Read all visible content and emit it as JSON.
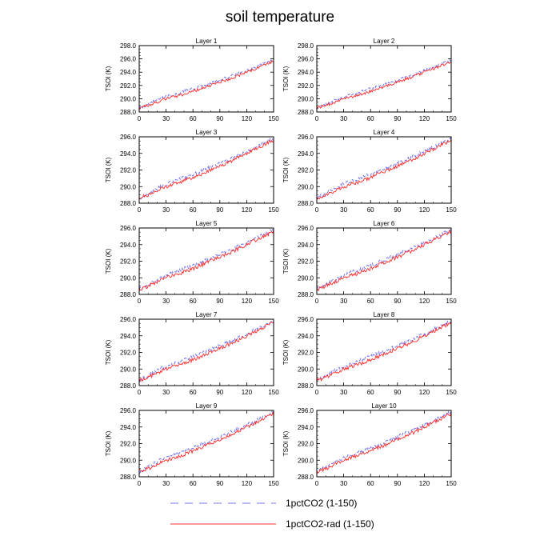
{
  "figure": {
    "title": "soil temperature"
  },
  "chart_data": {
    "type": "line",
    "x": {
      "ticks": [
        0,
        30,
        60,
        90,
        120,
        150
      ],
      "range": [
        0,
        150
      ]
    },
    "ylabel": "TSOI  (K)",
    "ylim": [
      288.0,
      296.0
    ],
    "yticks_first_panel": [
      "288.0",
      "290.0",
      "292.0",
      "294.0",
      "296.0",
      "298.0"
    ],
    "yticks": [
      "288.0",
      "290.0",
      "292.0",
      "294.0",
      "296.0"
    ],
    "ylim_first_panel": [
      288.0,
      298.0
    ],
    "legend": {
      "placement": "bottom-center",
      "entries": [
        {
          "label": "1pctCO2 (1-150)",
          "color": "#7777ee",
          "style": "dashed"
        },
        {
          "label": "1pctCO2-rad (1-150)",
          "color": "#ff3333",
          "style": "solid"
        }
      ]
    },
    "panels": [
      {
        "title": "Layer 1",
        "ylim": [
          288.0,
          298.0
        ],
        "series": [
          {
            "name": "1pctCO2 (1-150)",
            "x": [
              0,
              10,
              20,
              30,
              45,
              60,
              75,
              90,
              105,
              120,
              135,
              150
            ],
            "y": [
              288.6,
              289.2,
              289.8,
              290.3,
              290.9,
              291.5,
              292.1,
              292.8,
              293.5,
              294.2,
              295.0,
              295.8
            ]
          },
          {
            "name": "1pctCO2-rad (1-150)",
            "x": [
              0,
              10,
              20,
              30,
              45,
              60,
              75,
              90,
              105,
              120,
              135,
              150
            ],
            "y": [
              288.6,
              289.0,
              289.5,
              290.0,
              290.5,
              291.1,
              291.8,
              292.5,
              293.2,
              294.0,
              294.8,
              295.6
            ]
          }
        ]
      },
      {
        "title": "Layer 2",
        "ylim": [
          288.0,
          298.0
        ],
        "series": [
          {
            "name": "1pctCO2 (1-150)",
            "x": [
              0,
              10,
              20,
              30,
              45,
              60,
              75,
              90,
              105,
              120,
              135,
              150
            ],
            "y": [
              288.6,
              289.2,
              289.8,
              290.3,
              290.9,
              291.5,
              292.1,
              292.8,
              293.5,
              294.2,
              295.0,
              295.8
            ]
          },
          {
            "name": "1pctCO2-rad (1-150)",
            "x": [
              0,
              10,
              20,
              30,
              45,
              60,
              75,
              90,
              105,
              120,
              135,
              150
            ],
            "y": [
              288.6,
              289.0,
              289.5,
              290.0,
              290.5,
              291.1,
              291.8,
              292.5,
              293.2,
              294.0,
              294.8,
              295.6
            ]
          }
        ]
      },
      {
        "title": "Layer 3",
        "ylim": [
          288.0,
          296.0
        ],
        "series": [
          {
            "name": "1pctCO2 (1-150)",
            "x": [
              0,
              10,
              20,
              30,
              45,
              60,
              75,
              90,
              105,
              120,
              135,
              150
            ],
            "y": [
              288.6,
              289.2,
              289.8,
              290.3,
              290.9,
              291.5,
              292.1,
              292.8,
              293.5,
              294.2,
              295.0,
              295.8
            ]
          },
          {
            "name": "1pctCO2-rad (1-150)",
            "x": [
              0,
              10,
              20,
              30,
              45,
              60,
              75,
              90,
              105,
              120,
              135,
              150
            ],
            "y": [
              288.6,
              289.0,
              289.5,
              290.0,
              290.5,
              291.1,
              291.8,
              292.5,
              293.2,
              294.0,
              294.8,
              295.6
            ]
          }
        ]
      },
      {
        "title": "Layer 4",
        "ylim": [
          288.0,
          296.0
        ],
        "series": [
          {
            "name": "1pctCO2 (1-150)",
            "x": [
              0,
              10,
              20,
              30,
              45,
              60,
              75,
              90,
              105,
              120,
              135,
              150
            ],
            "y": [
              288.6,
              289.2,
              289.8,
              290.3,
              290.9,
              291.5,
              292.1,
              292.8,
              293.5,
              294.2,
              295.0,
              295.8
            ]
          },
          {
            "name": "1pctCO2-rad (1-150)",
            "x": [
              0,
              10,
              20,
              30,
              45,
              60,
              75,
              90,
              105,
              120,
              135,
              150
            ],
            "y": [
              288.6,
              289.0,
              289.5,
              290.0,
              290.5,
              291.1,
              291.8,
              292.5,
              293.2,
              294.0,
              294.8,
              295.6
            ]
          }
        ]
      },
      {
        "title": "Layer 5",
        "ylim": [
          288.0,
          296.0
        ],
        "series": [
          {
            "name": "1pctCO2 (1-150)",
            "x": [
              0,
              10,
              20,
              30,
              45,
              60,
              75,
              90,
              105,
              120,
              135,
              150
            ],
            "y": [
              288.6,
              289.2,
              289.8,
              290.3,
              290.9,
              291.5,
              292.1,
              292.8,
              293.5,
              294.2,
              295.0,
              295.8
            ]
          },
          {
            "name": "1pctCO2-rad (1-150)",
            "x": [
              0,
              10,
              20,
              30,
              45,
              60,
              75,
              90,
              105,
              120,
              135,
              150
            ],
            "y": [
              288.6,
              289.0,
              289.5,
              290.0,
              290.5,
              291.1,
              291.8,
              292.5,
              293.2,
              294.0,
              294.8,
              295.6
            ]
          }
        ]
      },
      {
        "title": "Layer 6",
        "ylim": [
          288.0,
          296.0
        ],
        "series": [
          {
            "name": "1pctCO2 (1-150)",
            "x": [
              0,
              10,
              20,
              30,
              45,
              60,
              75,
              90,
              105,
              120,
              135,
              150
            ],
            "y": [
              288.6,
              289.2,
              289.8,
              290.3,
              290.9,
              291.5,
              292.1,
              292.8,
              293.5,
              294.2,
              295.0,
              295.8
            ]
          },
          {
            "name": "1pctCO2-rad (1-150)",
            "x": [
              0,
              10,
              20,
              30,
              45,
              60,
              75,
              90,
              105,
              120,
              135,
              150
            ],
            "y": [
              288.6,
              289.0,
              289.5,
              290.0,
              290.5,
              291.1,
              291.8,
              292.5,
              293.2,
              294.0,
              294.8,
              295.6
            ]
          }
        ]
      },
      {
        "title": "Layer 7",
        "ylim": [
          288.0,
          296.0
        ],
        "series": [
          {
            "name": "1pctCO2 (1-150)",
            "x": [
              0,
              10,
              20,
              30,
              45,
              60,
              75,
              90,
              105,
              120,
              135,
              150
            ],
            "y": [
              288.6,
              289.2,
              289.8,
              290.3,
              290.9,
              291.5,
              292.1,
              292.8,
              293.5,
              294.2,
              295.0,
              295.8
            ]
          },
          {
            "name": "1pctCO2-rad (1-150)",
            "x": [
              0,
              10,
              20,
              30,
              45,
              60,
              75,
              90,
              105,
              120,
              135,
              150
            ],
            "y": [
              288.6,
              289.0,
              289.5,
              290.0,
              290.5,
              291.1,
              291.8,
              292.5,
              293.2,
              294.0,
              294.8,
              295.6
            ]
          }
        ]
      },
      {
        "title": "Layer 8",
        "ylim": [
          288.0,
          296.0
        ],
        "series": [
          {
            "name": "1pctCO2 (1-150)",
            "x": [
              0,
              10,
              20,
              30,
              45,
              60,
              75,
              90,
              105,
              120,
              135,
              150
            ],
            "y": [
              288.6,
              289.2,
              289.8,
              290.3,
              290.9,
              291.5,
              292.1,
              292.8,
              293.5,
              294.2,
              295.0,
              295.8
            ]
          },
          {
            "name": "1pctCO2-rad (1-150)",
            "x": [
              0,
              10,
              20,
              30,
              45,
              60,
              75,
              90,
              105,
              120,
              135,
              150
            ],
            "y": [
              288.6,
              289.0,
              289.5,
              290.0,
              290.5,
              291.1,
              291.8,
              292.5,
              293.2,
              294.0,
              294.8,
              295.6
            ]
          }
        ]
      },
      {
        "title": "Layer 9",
        "ylim": [
          288.0,
          296.0
        ],
        "series": [
          {
            "name": "1pctCO2 (1-150)",
            "x": [
              0,
              10,
              20,
              30,
              45,
              60,
              75,
              90,
              105,
              120,
              135,
              150
            ],
            "y": [
              288.6,
              289.2,
              289.8,
              290.3,
              290.9,
              291.5,
              292.1,
              292.8,
              293.5,
              294.2,
              295.0,
              295.8
            ]
          },
          {
            "name": "1pctCO2-rad (1-150)",
            "x": [
              0,
              10,
              20,
              30,
              45,
              60,
              75,
              90,
              105,
              120,
              135,
              150
            ],
            "y": [
              288.6,
              289.0,
              289.5,
              290.0,
              290.5,
              291.1,
              291.8,
              292.5,
              293.2,
              294.0,
              294.8,
              295.6
            ]
          }
        ]
      },
      {
        "title": "Layer 10",
        "ylim": [
          288.0,
          296.0
        ],
        "series": [
          {
            "name": "1pctCO2 (1-150)",
            "x": [
              0,
              10,
              20,
              30,
              45,
              60,
              75,
              90,
              105,
              120,
              135,
              150
            ],
            "y": [
              288.6,
              289.2,
              289.8,
              290.3,
              290.9,
              291.5,
              292.1,
              292.8,
              293.5,
              294.2,
              295.0,
              295.8
            ]
          },
          {
            "name": "1pctCO2-rad (1-150)",
            "x": [
              0,
              10,
              20,
              30,
              45,
              60,
              75,
              90,
              105,
              120,
              135,
              150
            ],
            "y": [
              288.6,
              289.0,
              289.5,
              290.0,
              290.5,
              291.1,
              291.8,
              292.5,
              293.2,
              294.0,
              294.8,
              295.6
            ]
          }
        ]
      }
    ]
  }
}
